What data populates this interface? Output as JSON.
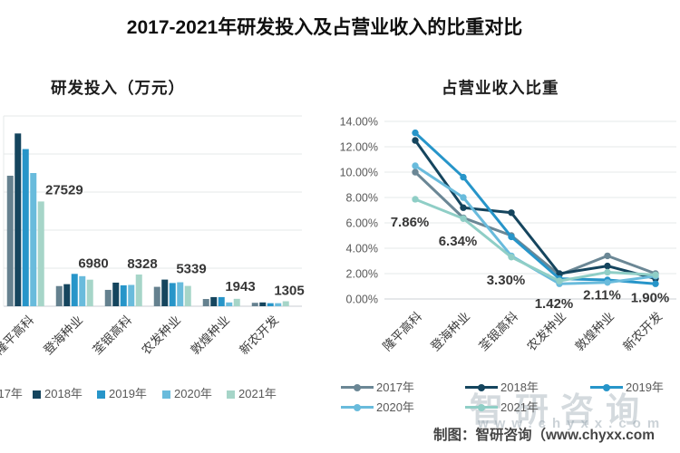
{
  "page": {
    "title": "2017-2021年研发投入及占营业收入的比重对比",
    "attribution": "制图：智研咨询（www.chyxx.com",
    "watermark": {
      "brand": "智研咨询",
      "url": "www.chyxx.com"
    }
  },
  "chart_data": [
    {
      "type": "bar",
      "title": "研发投入（万元）",
      "categories": [
        "隆平高科",
        "登海种业",
        "荃银高科",
        "农发种业",
        "敦煌种业",
        "新农开发"
      ],
      "series": [
        {
          "name": "2017年",
          "color": "#65818f",
          "values": [
            34300,
            5300,
            4300,
            5100,
            1900,
            900
          ]
        },
        {
          "name": "2018年",
          "color": "#15455e",
          "values": [
            45400,
            5800,
            6200,
            7000,
            2400,
            1000
          ]
        },
        {
          "name": "2019年",
          "color": "#2795c9",
          "values": [
            41300,
            8500,
            5500,
            6100,
            2400,
            800
          ]
        },
        {
          "name": "2020年",
          "color": "#69bbdc",
          "values": [
            35000,
            7900,
            5600,
            6300,
            1000,
            800
          ]
        },
        {
          "name": "2021年",
          "color": "#a6d5c8",
          "values": [
            27529,
            6980,
            8328,
            5339,
            1943,
            1305
          ]
        }
      ],
      "labeled_series": "2021年",
      "data_labels": [
        "27529",
        "6980",
        "8328",
        "5339",
        "1943",
        "1305"
      ],
      "ylim": [
        0,
        50000
      ],
      "grid": true,
      "legend_position": "bottom"
    },
    {
      "type": "line",
      "title": "占营业收入比重",
      "categories": [
        "隆平高科",
        "登海种业",
        "荃银高科",
        "农发种业",
        "敦煌种业",
        "新农开发"
      ],
      "series": [
        {
          "name": "2017年",
          "color": "#6b8795",
          "values": [
            10.0,
            6.4,
            5.0,
            1.9,
            3.4,
            2.0
          ]
        },
        {
          "name": "2018年",
          "color": "#15455e",
          "values": [
            12.5,
            7.2,
            6.8,
            2.0,
            2.6,
            1.6
          ]
        },
        {
          "name": "2019年",
          "color": "#2795c9",
          "values": [
            13.1,
            9.6,
            4.9,
            1.6,
            1.5,
            1.2
          ]
        },
        {
          "name": "2020年",
          "color": "#69bbdc",
          "values": [
            10.5,
            8.0,
            3.4,
            1.2,
            1.3,
            1.8
          ]
        },
        {
          "name": "2021年",
          "color": "#8fcec6",
          "values": [
            7.86,
            6.34,
            3.3,
            1.42,
            2.11,
            1.9
          ]
        }
      ],
      "labeled_series": "2021年",
      "data_labels": [
        "7.86%",
        "6.34%",
        "3.30%",
        "1.42%",
        "2.11%",
        "1.90%"
      ],
      "ylim": [
        0,
        14
      ],
      "ytick_step": 2,
      "ytick_labels": [
        "0.00%",
        "2.00%",
        "4.00%",
        "6.00%",
        "8.00%",
        "10.00%",
        "12.00%",
        "14.00%"
      ],
      "grid": true,
      "legend_position": "bottom",
      "legend_rows": [
        [
          "2017年",
          "2018年",
          "2019年"
        ],
        [
          "2020年",
          "2021年"
        ]
      ]
    }
  ]
}
